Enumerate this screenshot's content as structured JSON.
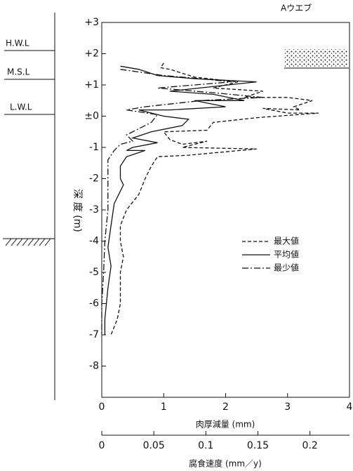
{
  "chart_data": {
    "type": "line",
    "title": "Aウエブ",
    "ylabel": "深 度 (m)",
    "xlabel": "肉厚減量 (mm)",
    "x2label": "腐食速度 (mm／y)",
    "levels": [
      "H.W.L",
      "M.S.L",
      "L.W.L"
    ],
    "xlim": [
      0,
      4
    ],
    "xticks": [
      0,
      1,
      2,
      3,
      4
    ],
    "x2lim": [
      0,
      0.238
    ],
    "x2ticks": [
      0,
      0.05,
      0.1,
      0.15,
      0.2
    ],
    "ylim": [
      -9,
      3
    ],
    "yticks": [
      {
        "value": 3,
        "label": "+3"
      },
      {
        "value": 2,
        "label": "+2"
      },
      {
        "value": 1,
        "label": "+1"
      },
      {
        "value": 0,
        "label": "±0"
      },
      -1,
      -2,
      -3,
      -4,
      -5,
      -6,
      -7,
      -8
    ],
    "series": [
      {
        "name": "最大値",
        "color": "#111",
        "dash": "5,3",
        "values": [
          1.0,
          0.95,
          1.1,
          1.5,
          2.2,
          1.8,
          2.6,
          2.3,
          3.0,
          3.4,
          3.1,
          3.2,
          2.6,
          3.0,
          3.5,
          2.5,
          1.8,
          1.7,
          1.0,
          1.1,
          1.3,
          1.7,
          1.3,
          2.5,
          1.4,
          0.9,
          0.8,
          0.7,
          0.6,
          0.4,
          0.3,
          0.3,
          0.35,
          0.3,
          0.3,
          0.3,
          0.25,
          0.15
        ],
        "depth": [
          1.7,
          1.55,
          1.5,
          1.25,
          1.1,
          0.9,
          0.8,
          0.6,
          0.6,
          0.5,
          0.3,
          0.2,
          0.25,
          0.1,
          0.1,
          -0.05,
          -0.2,
          -0.45,
          -0.5,
          -0.75,
          -0.9,
          -0.8,
          -1.0,
          -1.05,
          -1.25,
          -1.3,
          -1.6,
          -2.0,
          -2.5,
          -3.0,
          -3.5,
          -4.0,
          -4.5,
          -5.0,
          -5.5,
          -6.0,
          -6.5,
          -7.0
        ]
      },
      {
        "name": "平均値",
        "color": "#111",
        "dash": "none",
        "values": [
          0.3,
          0.6,
          0.9,
          1.5,
          2.5,
          1.1,
          1.8,
          2.3,
          1.5,
          2.0,
          1.1,
          0.6,
          1.0,
          1.4,
          1.3,
          0.8,
          0.5,
          0.9,
          0.5,
          0.4,
          0.7,
          0.4,
          0.3,
          0.3,
          0.35,
          0.2,
          0.15,
          0.1,
          0.15,
          0.1,
          0.05,
          0.05
        ],
        "depth": [
          1.6,
          1.5,
          1.3,
          1.2,
          1.1,
          0.8,
          0.7,
          0.5,
          0.5,
          0.3,
          0.2,
          0.2,
          0.0,
          -0.1,
          -0.3,
          -0.5,
          -0.7,
          -0.85,
          -1.0,
          -1.1,
          -1.1,
          -1.3,
          -1.6,
          -2.0,
          -2.2,
          -2.8,
          -3.5,
          -4.2,
          -4.8,
          -5.5,
          -6.5,
          -7.0
        ]
      },
      {
        "name": "最少値",
        "color": "#111",
        "dash": "9,3,2,3",
        "values": [
          0.3,
          1.0,
          1.6,
          2.1,
          0.9,
          1.8,
          2.6,
          1.6,
          0.7,
          0.4,
          0.9,
          0.8,
          0.6,
          0.4,
          0.5,
          0.3,
          0.2,
          0.1,
          0.1,
          0.1,
          0.05,
          0.03,
          0.0,
          0.0
        ],
        "depth": [
          1.5,
          1.3,
          1.2,
          1.1,
          0.9,
          0.75,
          0.6,
          0.5,
          0.3,
          0.2,
          0.05,
          -0.2,
          -0.4,
          -0.6,
          -0.8,
          -0.9,
          -1.1,
          -1.4,
          -2.0,
          -3.0,
          -4.0,
          -5.0,
          -6.0,
          -7.0
        ]
      }
    ]
  }
}
